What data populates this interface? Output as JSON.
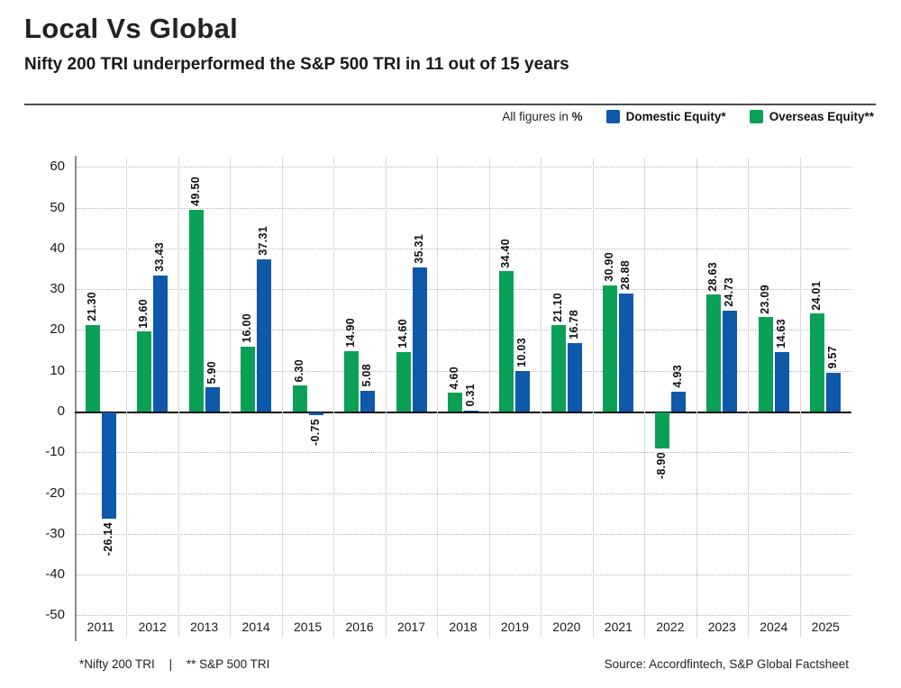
{
  "header": {
    "title": "Local Vs Global",
    "subtitle": "Nifty 200 TRI underperformed the S&P 500 TRI in 11 out of 15 years"
  },
  "legend": {
    "note": "All figures in",
    "note_unit": "%",
    "items": [
      {
        "label": "Domestic Equity*",
        "color": "#0e59a9"
      },
      {
        "label": "Overseas Equity**",
        "color": "#0aa156"
      }
    ]
  },
  "chart_data": {
    "type": "bar",
    "title": "Local Vs Global",
    "subtitle": "Nifty 200 TRI underperformed the S&P 500 TRI in 11 out of 15 years",
    "categories": [
      "2011",
      "2012",
      "2013",
      "2014",
      "2015",
      "2016",
      "2017",
      "2018",
      "2019",
      "2020",
      "2021",
      "2022",
      "2023",
      "2024",
      "2025"
    ],
    "series": [
      {
        "name": "Overseas Equity**",
        "color": "#0aa156",
        "values": [
          "21.30",
          "19.60",
          "49.50",
          "16.00",
          "6.30",
          "14.90",
          "14.60",
          "4.60",
          "34.40",
          "21.10",
          "30.90",
          "-8.90",
          "28.63",
          "23.09",
          "24.01"
        ]
      },
      {
        "name": "Domestic Equity*",
        "color": "#0e59a9",
        "values": [
          "-26.14",
          "33.43",
          "5.90",
          "37.31",
          "-0.75",
          "5.08",
          "35.31",
          "0.31",
          "10.03",
          "16.78",
          "28.88",
          "4.93",
          "24.73",
          "14.63",
          "9.57"
        ]
      }
    ],
    "unit": "%",
    "ylim": [
      -50,
      60
    ],
    "yticks": [
      60,
      50,
      40,
      30,
      20,
      10,
      0,
      -10,
      -20,
      -30,
      -40,
      -50
    ],
    "grid": true,
    "legend_position": "top-right"
  },
  "footer": {
    "note1": "*Nifty 200 TRI",
    "separator": "|",
    "note2": "** S&P 500 TRI",
    "source": "Source: Accordfintech, S&P Global Factsheet"
  }
}
